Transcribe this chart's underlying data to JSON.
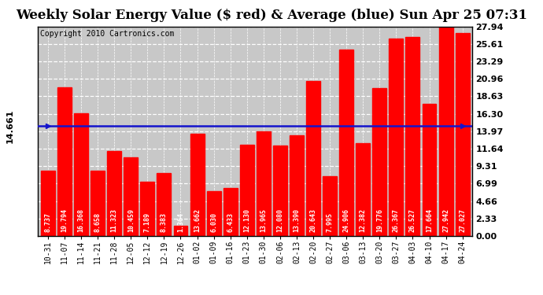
{
  "title": "Weekly Solar Energy Value ($ red) & Average (blue) Sun Apr 25 07:31",
  "copyright": "Copyright 2010 Cartronics.com",
  "categories": [
    "10-31",
    "11-07",
    "11-14",
    "11-21",
    "11-28",
    "12-05",
    "12-12",
    "12-19",
    "12-26",
    "01-02",
    "01-09",
    "01-16",
    "01-23",
    "01-30",
    "02-06",
    "02-13",
    "02-20",
    "02-27",
    "03-06",
    "03-13",
    "03-20",
    "03-27",
    "04-03",
    "04-10",
    "04-17",
    "04-24"
  ],
  "values": [
    8.737,
    19.794,
    16.368,
    8.658,
    11.323,
    10.459,
    7.189,
    8.383,
    1.364,
    13.662,
    6.03,
    6.433,
    12.13,
    13.965,
    12.08,
    13.39,
    20.643,
    7.995,
    24.906,
    12.382,
    19.776,
    26.367,
    26.527,
    17.664,
    27.942,
    27.027
  ],
  "average": 14.661,
  "bar_color": "#FF0000",
  "avg_line_color": "#1414CC",
  "figure_bg_color": "#FFFFFF",
  "plot_bg_color": "#C8C8C8",
  "ylim": [
    0,
    27.94
  ],
  "yticks": [
    0.0,
    2.33,
    4.66,
    6.99,
    9.31,
    11.64,
    13.97,
    16.3,
    18.63,
    20.96,
    23.29,
    25.61,
    27.94
  ],
  "avg_label": "14.661",
  "title_fontsize": 12,
  "copyright_fontsize": 7,
  "tick_fontsize": 8,
  "bar_label_fontsize": 6,
  "ytick_fontsize": 8
}
